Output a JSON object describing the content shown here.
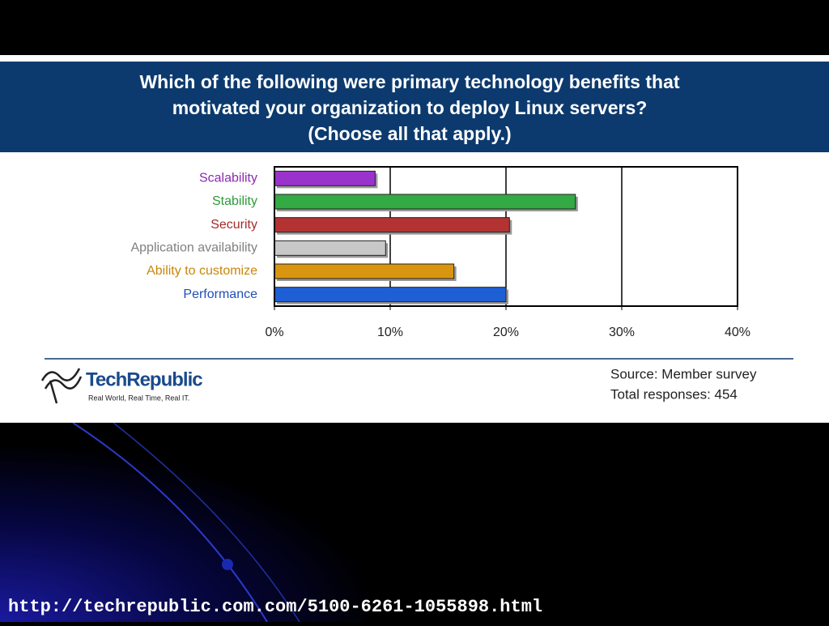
{
  "chart_data": {
    "type": "bar",
    "orientation": "horizontal",
    "title": [
      "Which of the following were primary technology benefits that",
      "motivated your organization to deploy Linux servers?",
      "(Choose all that apply.)"
    ],
    "categories": [
      "Scalability",
      "Stability",
      "Security",
      "Application availability",
      "Ability to customize",
      "Performance"
    ],
    "values": [
      8.7,
      26,
      20.3,
      9.6,
      15.5,
      20
    ],
    "colors": [
      "#9933cc",
      "#33aa44",
      "#b33333",
      "#c8c8c8",
      "#d9950f",
      "#1f5fd6"
    ],
    "label_colors": [
      "#8a2bb0",
      "#2e9a3a",
      "#a52a2a",
      "#808080",
      "#c8860a",
      "#1f4fb8"
    ],
    "xlim": [
      0,
      40
    ],
    "xticks": [
      {
        "value": 0,
        "label": "0%"
      },
      {
        "value": 10,
        "label": "10%"
      },
      {
        "value": 20,
        "label": "20%"
      },
      {
        "value": 30,
        "label": "30%"
      },
      {
        "value": 40,
        "label": "40%"
      }
    ],
    "grid": true
  },
  "footer": {
    "source": "Source: Member survey",
    "responses": "Total responses: 454"
  },
  "logo": {
    "name": "TechRepublic",
    "tagline": "Real World, Real Time, Real IT."
  },
  "url": "http://techrepublic.com.com/5100-6261-1055898.html"
}
